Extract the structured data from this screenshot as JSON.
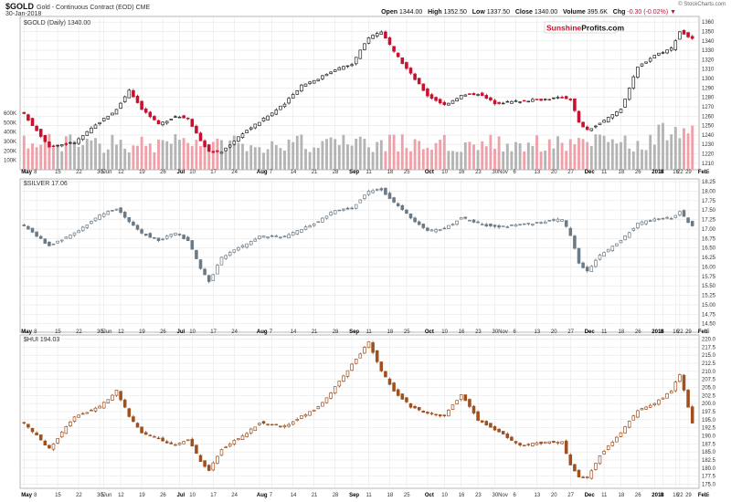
{
  "header": {
    "symbol": "$GOLD",
    "description": "Gold - Continuous Contract (EOD)",
    "exchange": "CME",
    "date": "30-Jan-2018",
    "open_label": "Open",
    "open": "1344.00",
    "high_label": "High",
    "high": "1352.50",
    "low_label": "Low",
    "low": "1337.50",
    "close_label": "Close",
    "close": "1340.00",
    "volume_label": "Volume",
    "volume": "395.6K",
    "chg_label": "Chg",
    "chg": "-0.30 (-0.02%)",
    "credit": "© StockCharts.com"
  },
  "watermark": {
    "part1": "Sunshine",
    "part2": "Profits",
    "part3": ".com"
  },
  "colors": {
    "up_outline": "#222222",
    "down_fill": "#c8102e",
    "silver": "#6c7a86",
    "hui": "#a0501e",
    "vol_up": "#b4b4b4",
    "vol_down": "#f0a0a8",
    "grid": "#e6e6e6",
    "accent": "#c0103c"
  },
  "chart_data": [
    {
      "type": "candlestick",
      "panel": "gold",
      "title": "$GOLD (Daily) 1340.00",
      "ylim": [
        1205,
        1365
      ],
      "yticks": [
        1210,
        1220,
        1230,
        1240,
        1250,
        1260,
        1270,
        1280,
        1290,
        1300,
        1310,
        1320,
        1330,
        1340,
        1350,
        1360
      ],
      "volume_ylim": [
        0,
        600000
      ],
      "volume_ticks": [
        100000,
        200000,
        300000,
        400000,
        500000,
        600000
      ],
      "volume_tick_labels": [
        "100K",
        "200K",
        "300K",
        "400K",
        "500K",
        "600K"
      ],
      "anchors": [
        [
          0,
          1262
        ],
        [
          6,
          1228
        ],
        [
          12,
          1232
        ],
        [
          18,
          1254
        ],
        [
          22,
          1267
        ],
        [
          25,
          1288
        ],
        [
          28,
          1268
        ],
        [
          32,
          1251
        ],
        [
          36,
          1260
        ],
        [
          39,
          1258
        ],
        [
          42,
          1234
        ],
        [
          44,
          1222
        ],
        [
          47,
          1222
        ],
        [
          52,
          1242
        ],
        [
          56,
          1254
        ],
        [
          62,
          1273
        ],
        [
          66,
          1293
        ],
        [
          70,
          1300
        ],
        [
          74,
          1310
        ],
        [
          78,
          1315
        ],
        [
          82,
          1344
        ],
        [
          85,
          1350
        ],
        [
          88,
          1328
        ],
        [
          92,
          1305
        ],
        [
          96,
          1282
        ],
        [
          100,
          1272
        ],
        [
          104,
          1282
        ],
        [
          108,
          1284
        ],
        [
          112,
          1274
        ],
        [
          118,
          1276
        ],
        [
          124,
          1278
        ],
        [
          128,
          1280
        ],
        [
          130,
          1278
        ],
        [
          132,
          1253
        ],
        [
          134,
          1245
        ],
        [
          137,
          1252
        ],
        [
          142,
          1268
        ],
        [
          146,
          1312
        ],
        [
          150,
          1325
        ],
        [
          154,
          1332
        ],
        [
          156,
          1350
        ],
        [
          159,
          1342
        ]
      ]
    },
    {
      "type": "candlestick",
      "panel": "silver",
      "title": "$SILVER 17.06",
      "ylim": [
        14.3,
        18.3
      ],
      "yticks": [
        14.5,
        14.75,
        15.0,
        15.25,
        15.5,
        15.75,
        16.0,
        16.25,
        16.5,
        16.75,
        17.0,
        17.25,
        17.5,
        17.75,
        18.0,
        18.25
      ],
      "ytick_labels": [
        "14.50",
        "14.75",
        "15.00",
        "15.25",
        "15.50",
        "15.75",
        "16.00",
        "16.25",
        "16.50",
        "16.75",
        "17.00",
        "17.25",
        "17.50",
        "17.75",
        "18.00",
        "18.25"
      ],
      "anchors": [
        [
          0,
          17.1
        ],
        [
          6,
          16.55
        ],
        [
          12,
          16.9
        ],
        [
          18,
          17.35
        ],
        [
          22,
          17.55
        ],
        [
          25,
          17.2
        ],
        [
          28,
          16.9
        ],
        [
          32,
          16.7
        ],
        [
          36,
          16.9
        ],
        [
          39,
          16.7
        ],
        [
          42,
          15.95
        ],
        [
          44,
          15.6
        ],
        [
          47,
          16.25
        ],
        [
          52,
          16.55
        ],
        [
          56,
          16.8
        ],
        [
          62,
          16.8
        ],
        [
          66,
          17.0
        ],
        [
          70,
          17.2
        ],
        [
          74,
          17.5
        ],
        [
          78,
          17.55
        ],
        [
          82,
          18.0
        ],
        [
          85,
          18.05
        ],
        [
          88,
          17.7
        ],
        [
          92,
          17.3
        ],
        [
          96,
          16.95
        ],
        [
          100,
          17.0
        ],
        [
          104,
          17.3
        ],
        [
          108,
          17.15
        ],
        [
          112,
          17.05
        ],
        [
          118,
          17.1
        ],
        [
          124,
          17.2
        ],
        [
          128,
          17.25
        ],
        [
          130,
          16.85
        ],
        [
          132,
          16.1
        ],
        [
          134,
          15.9
        ],
        [
          137,
          16.3
        ],
        [
          142,
          16.7
        ],
        [
          146,
          17.15
        ],
        [
          150,
          17.25
        ],
        [
          154,
          17.3
        ],
        [
          156,
          17.45
        ],
        [
          159,
          17.06
        ]
      ]
    },
    {
      "type": "candlestick",
      "panel": "hui",
      "title": "$HUI 194.03",
      "ylim": [
        174,
        221
      ],
      "yticks": [
        175,
        177.5,
        180,
        182.5,
        185,
        187.5,
        190,
        192.5,
        195,
        197.5,
        200,
        202.5,
        205,
        207.5,
        210,
        212.5,
        215,
        217.5,
        220
      ],
      "ytick_labels": [
        "175.0",
        "177.5",
        "180.0",
        "182.5",
        "185.0",
        "187.5",
        "190.0",
        "192.5",
        "195.0",
        "197.5",
        "200.0",
        "202.5",
        "205.0",
        "207.5",
        "210.0",
        "212.5",
        "215.0",
        "217.5",
        "220.0"
      ],
      "anchors": [
        [
          0,
          194
        ],
        [
          6,
          186
        ],
        [
          12,
          196
        ],
        [
          18,
          199
        ],
        [
          22,
          204
        ],
        [
          25,
          196
        ],
        [
          28,
          191
        ],
        [
          32,
          189
        ],
        [
          36,
          187
        ],
        [
          39,
          189
        ],
        [
          42,
          182
        ],
        [
          44,
          179
        ],
        [
          47,
          186
        ],
        [
          52,
          190
        ],
        [
          56,
          194
        ],
        [
          62,
          193
        ],
        [
          66,
          196
        ],
        [
          70,
          199
        ],
        [
          74,
          205
        ],
        [
          78,
          212
        ],
        [
          82,
          219
        ],
        [
          85,
          210
        ],
        [
          88,
          204
        ],
        [
          92,
          199
        ],
        [
          96,
          197
        ],
        [
          100,
          196
        ],
        [
          104,
          203
        ],
        [
          108,
          195
        ],
        [
          112,
          192
        ],
        [
          118,
          187
        ],
        [
          124,
          188
        ],
        [
          128,
          188
        ],
        [
          130,
          181
        ],
        [
          132,
          177
        ],
        [
          134,
          177
        ],
        [
          137,
          184
        ],
        [
          142,
          191
        ],
        [
          146,
          198
        ],
        [
          150,
          200
        ],
        [
          154,
          204
        ],
        [
          156,
          209
        ],
        [
          159,
          194
        ]
      ]
    }
  ],
  "x_axis": {
    "labels": [
      {
        "i": 0,
        "t": "May"
      },
      {
        "i": 3,
        "t": "8"
      },
      {
        "i": 8,
        "t": "15"
      },
      {
        "i": 13,
        "t": "22"
      },
      {
        "i": 18,
        "t": "30Jun"
      },
      {
        "i": 19,
        "t": "5"
      },
      {
        "i": 23,
        "t": "12"
      },
      {
        "i": 28,
        "t": "19"
      },
      {
        "i": 33,
        "t": "26"
      },
      {
        "i": 37,
        "t": "Jul"
      },
      {
        "i": 40,
        "t": "10"
      },
      {
        "i": 45,
        "t": "17"
      },
      {
        "i": 50,
        "t": "24"
      },
      {
        "i": 56,
        "t": "Aug"
      },
      {
        "i": 59,
        "t": "7"
      },
      {
        "i": 64,
        "t": "14"
      },
      {
        "i": 69,
        "t": "21"
      },
      {
        "i": 74,
        "t": "28"
      },
      {
        "i": 78,
        "t": "Sep"
      },
      {
        "i": 82,
        "t": "11"
      },
      {
        "i": 87,
        "t": "18"
      },
      {
        "i": 91,
        "t": "25"
      },
      {
        "i": 96,
        "t": "Oct"
      },
      {
        "i": 100,
        "t": "10"
      },
      {
        "i": 104,
        "t": "16"
      },
      {
        "i": 108,
        "t": "23"
      },
      {
        "i": 112,
        "t": "30Nov"
      },
      {
        "i": 117,
        "t": "6"
      },
      {
        "i": 122,
        "t": "13"
      },
      {
        "i": 126,
        "t": "20"
      },
      {
        "i": 130,
        "t": "27"
      },
      {
        "i": 134,
        "t": "Dec"
      },
      {
        "i": 138,
        "t": "11"
      },
      {
        "i": 142,
        "t": "18"
      },
      {
        "i": 146,
        "t": "26"
      },
      {
        "i": 150,
        "t": "2018"
      },
      {
        "i": 152,
        "t": "8"
      },
      {
        "i": 155,
        "t": "16"
      },
      {
        "i": 156,
        "t": "22"
      },
      {
        "i": 158,
        "t": "29"
      },
      {
        "i": 161,
        "t": "Feb"
      },
      {
        "i": 163,
        "t": "5"
      }
    ],
    "bold_labels": [
      "May",
      "Jul",
      "Aug",
      "Sep",
      "Oct",
      "Dec",
      "2018",
      "Feb"
    ]
  }
}
